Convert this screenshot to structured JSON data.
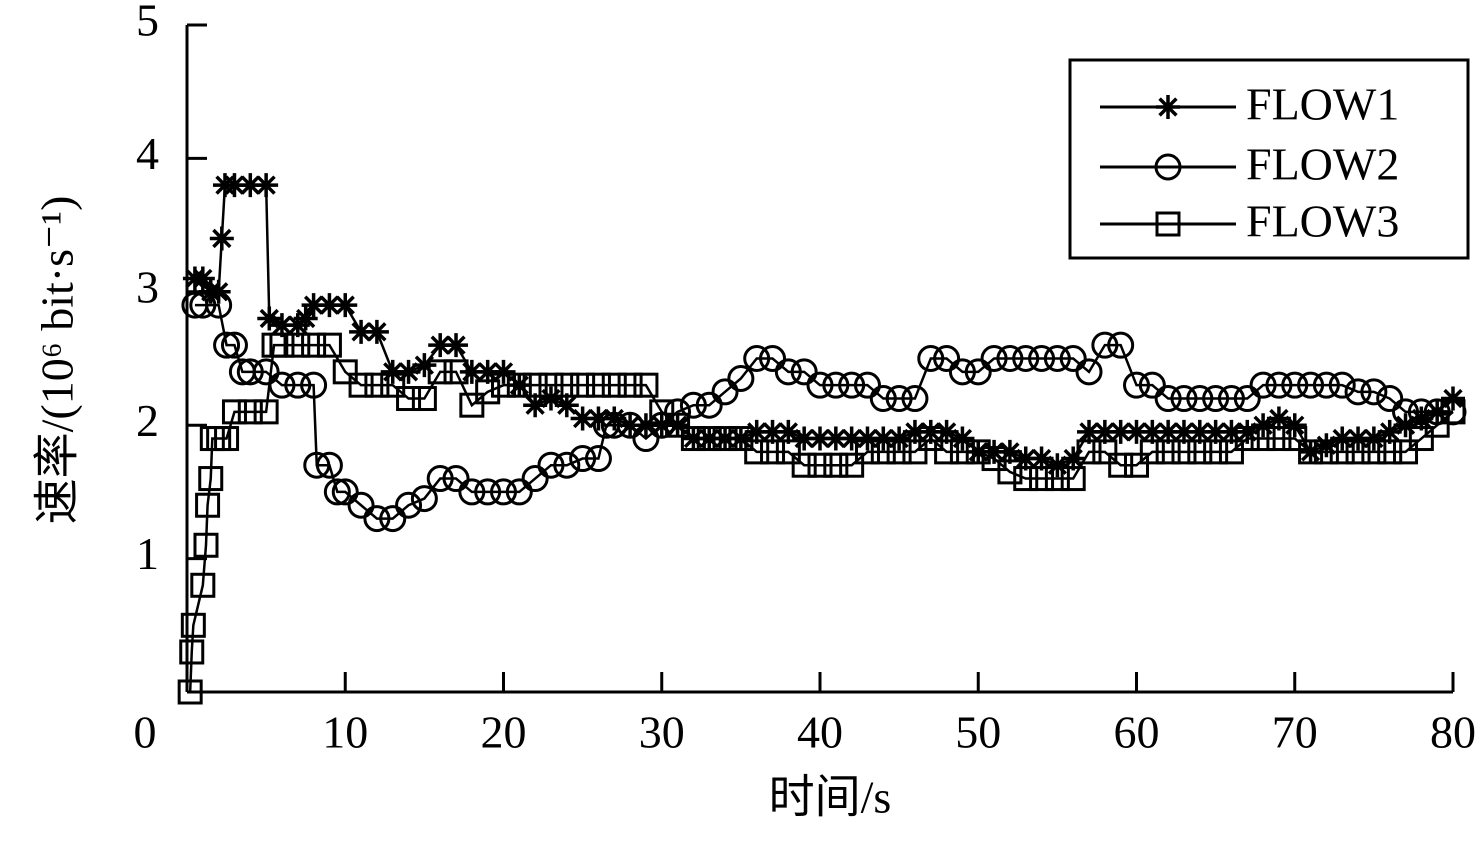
{
  "chart_data": {
    "type": "line",
    "xlabel": "时间/s",
    "ylabel": "速率/(10⁶ bit·s⁻¹)",
    "xlim": [
      0,
      80
    ],
    "xticks": [
      0,
      10,
      20,
      30,
      40,
      50,
      60,
      70,
      80
    ],
    "ylim": [
      0,
      5
    ],
    "yticks": [
      1,
      2,
      3,
      4,
      5
    ],
    "legend": "upper right",
    "series": [
      {
        "name": "FLOW1",
        "color": "#000000",
        "marker": "star",
        "x": [
          0.5,
          1,
          1.5,
          2,
          2.2,
          2.4,
          3,
          4,
          5,
          5.2,
          6,
          7,
          7.5,
          8,
          9,
          10,
          11,
          12,
          13,
          14,
          15,
          16,
          17,
          18,
          19,
          20,
          21,
          22,
          23,
          24,
          25,
          26,
          27,
          28,
          29,
          30,
          31,
          32,
          33,
          34,
          35,
          36,
          37,
          38,
          39,
          40,
          41,
          42,
          43,
          44,
          45,
          46,
          47,
          48,
          49,
          50,
          51,
          52,
          53,
          54,
          55,
          56,
          57,
          58,
          59,
          60,
          61,
          62,
          63,
          64,
          65,
          66,
          67,
          68,
          69,
          70,
          71,
          72,
          73,
          74,
          75,
          76,
          77,
          78,
          79,
          80
        ],
        "values": [
          3.1,
          3.1,
          3.0,
          3.0,
          3.4,
          3.8,
          3.8,
          3.8,
          3.8,
          2.8,
          2.75,
          2.75,
          2.8,
          2.9,
          2.9,
          2.9,
          2.7,
          2.7,
          2.4,
          2.4,
          2.45,
          2.6,
          2.6,
          2.4,
          2.4,
          2.4,
          2.3,
          2.15,
          2.2,
          2.15,
          2.05,
          2.05,
          2.05,
          2.0,
          2.0,
          2.0,
          2.0,
          1.9,
          1.9,
          1.9,
          1.9,
          1.95,
          1.95,
          1.95,
          1.9,
          1.9,
          1.9,
          1.9,
          1.9,
          1.9,
          1.9,
          1.95,
          1.95,
          1.95,
          1.9,
          1.8,
          1.8,
          1.8,
          1.75,
          1.75,
          1.7,
          1.75,
          1.95,
          1.95,
          1.95,
          1.95,
          1.95,
          1.95,
          1.95,
          1.95,
          1.95,
          1.95,
          1.95,
          2.0,
          2.05,
          2.0,
          1.8,
          1.85,
          1.9,
          1.9,
          1.9,
          1.95,
          2.0,
          2.05,
          2.1,
          2.2
        ]
      },
      {
        "name": "FLOW2",
        "color": "#000000",
        "marker": "circle",
        "x": [
          0.5,
          1,
          2,
          2.5,
          3,
          3.5,
          4,
          5,
          6,
          7,
          8,
          8.2,
          9,
          9.5,
          10,
          11,
          12,
          13,
          14,
          15,
          16,
          17,
          18,
          19,
          20,
          21,
          22,
          23,
          24,
          25,
          26,
          26.5,
          27,
          28,
          29,
          30,
          31,
          32,
          33,
          34,
          35,
          36,
          37,
          38,
          39,
          40,
          41,
          42,
          43,
          44,
          45,
          46,
          47,
          48,
          49,
          50,
          51,
          52,
          53,
          54,
          55,
          56,
          57,
          58,
          59,
          60,
          61,
          62,
          63,
          64,
          65,
          66,
          67,
          68,
          69,
          70,
          71,
          72,
          73,
          74,
          75,
          76,
          77,
          78,
          79,
          80
        ],
        "values": [
          2.9,
          2.9,
          2.9,
          2.6,
          2.6,
          2.4,
          2.4,
          2.4,
          2.3,
          2.3,
          2.3,
          1.7,
          1.7,
          1.5,
          1.5,
          1.4,
          1.3,
          1.3,
          1.4,
          1.45,
          1.6,
          1.6,
          1.5,
          1.5,
          1.5,
          1.5,
          1.6,
          1.7,
          1.7,
          1.75,
          1.75,
          2.0,
          2.0,
          2.0,
          1.9,
          2.0,
          2.1,
          2.15,
          2.15,
          2.25,
          2.35,
          2.5,
          2.5,
          2.4,
          2.4,
          2.3,
          2.3,
          2.3,
          2.3,
          2.2,
          2.2,
          2.2,
          2.5,
          2.5,
          2.4,
          2.4,
          2.5,
          2.5,
          2.5,
          2.5,
          2.5,
          2.5,
          2.4,
          2.6,
          2.6,
          2.3,
          2.3,
          2.2,
          2.2,
          2.2,
          2.2,
          2.2,
          2.2,
          2.3,
          2.3,
          2.3,
          2.3,
          2.3,
          2.3,
          2.25,
          2.25,
          2.2,
          2.1,
          2.1,
          2.1,
          2.1
        ]
      },
      {
        "name": "FLOW3",
        "color": "#000000",
        "marker": "square",
        "x": [
          0.2,
          0.3,
          0.4,
          1,
          1.2,
          1.3,
          1.5,
          1.6,
          2,
          2.5,
          3,
          4,
          5,
          5.5,
          6,
          7,
          8,
          9,
          10,
          11,
          12,
          13,
          14,
          15,
          16,
          17,
          18,
          19,
          20,
          21,
          22,
          23,
          24,
          25,
          26,
          27,
          28,
          29,
          30,
          31,
          32,
          33,
          34,
          35,
          36,
          37,
          38,
          39,
          40,
          41,
          42,
          43,
          44,
          45,
          46,
          47,
          48,
          49,
          50,
          51,
          52,
          53,
          54,
          55,
          56,
          57,
          58,
          59,
          60,
          61,
          62,
          63,
          64,
          65,
          66,
          67,
          68,
          69,
          70,
          71,
          72,
          73,
          74,
          75,
          76,
          77,
          78,
          79,
          80
        ],
        "values": [
          0.0,
          0.3,
          0.5,
          0.8,
          1.1,
          1.4,
          1.6,
          1.9,
          1.9,
          1.9,
          2.1,
          2.1,
          2.1,
          2.6,
          2.6,
          2.6,
          2.6,
          2.6,
          2.4,
          2.3,
          2.3,
          2.3,
          2.2,
          2.2,
          2.4,
          2.4,
          2.15,
          2.25,
          2.3,
          2.3,
          2.3,
          2.3,
          2.3,
          2.3,
          2.3,
          2.3,
          2.3,
          2.3,
          2.1,
          2.0,
          1.9,
          1.9,
          1.9,
          1.9,
          1.8,
          1.8,
          1.8,
          1.7,
          1.7,
          1.7,
          1.7,
          1.8,
          1.8,
          1.8,
          1.8,
          1.9,
          1.8,
          1.8,
          1.8,
          1.75,
          1.65,
          1.6,
          1.6,
          1.6,
          1.6,
          1.8,
          1.8,
          1.7,
          1.7,
          1.8,
          1.8,
          1.8,
          1.8,
          1.8,
          1.8,
          1.9,
          1.9,
          1.9,
          1.9,
          1.8,
          1.8,
          1.8,
          1.8,
          1.8,
          1.8,
          1.8,
          1.9,
          2.0,
          2.1
        ]
      }
    ]
  }
}
